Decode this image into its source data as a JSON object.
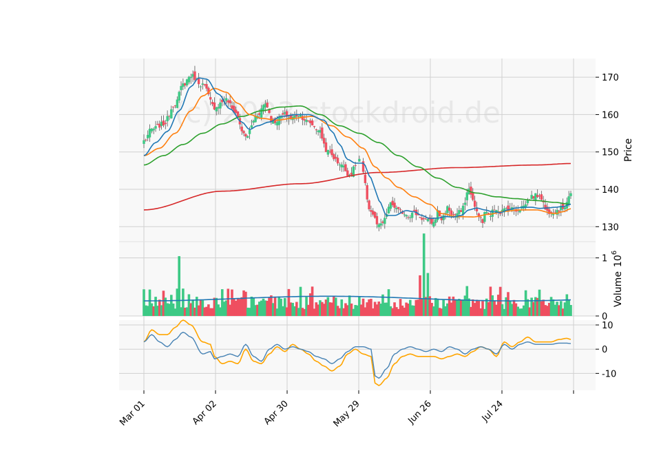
{
  "watermark": "(c) 2023 stockdroid.de",
  "chart_data": {
    "type": "candlestick",
    "x_tick_labels": [
      "Mar 01",
      "Apr 02",
      "Apr 30",
      "May 29",
      "Jun 26",
      "Jul 24"
    ],
    "x_tick_rotation_deg": 45,
    "grid": true,
    "colors": {
      "up": "#3dc985",
      "down": "#ef4f60",
      "ma_short": "#1f77b4",
      "ma_mid": "#ff7f0e",
      "ma_long": "#2ca02c",
      "ma_200": "#d62728",
      "volume_ma": "#1f77b4",
      "osc_fast": "#4682b4",
      "osc_slow": "#ffa500",
      "panel_bg": "#f8f8f8",
      "grid": "#d0d0d0"
    },
    "panels": [
      {
        "name": "price",
        "ylabel": "Price",
        "ylim": [
          126,
          175
        ],
        "yticks": [
          130,
          140,
          150,
          160,
          170
        ],
        "series": [
          {
            "kind": "close_anchors",
            "x": [
              0,
              4,
              10,
              16,
              20,
              24,
              30,
              36,
              42,
              46,
              52,
              58,
              62,
              66,
              72,
              75,
              79,
              84,
              89,
              94,
              100,
              105,
              110,
              116,
              120,
              122,
              126,
              131,
              136,
              138,
              140,
              143,
              145,
              148,
              150,
              152,
              155,
              158,
              162,
              166,
              170,
              173,
              174,
              176,
              180,
              182,
              186,
              190,
              194,
              196,
              198,
              202,
              206,
              211,
              214,
              218
            ],
            "y": [
              153,
              156,
              157.5,
              163,
              168,
              170.5,
              168,
              162,
              164,
              161,
              154,
              160,
              163,
              158,
              160,
              159,
              160,
              158,
              156,
              150,
              147,
              144,
              148,
              134,
              130,
              131,
              136,
              134,
              133,
              134,
              133,
              132,
              131.5,
              131,
              134,
              132,
              135,
              133,
              134,
              140,
              134,
              131,
              134,
              133,
              135,
              134,
              135,
              134.5,
              135.5,
              137,
              138,
              138.5,
              134,
              134.5,
              135,
              139
            ]
          },
          {
            "kind": "ma_short_anchors",
            "x": [
              0,
              6,
              12,
              18,
              24,
              28,
              32,
              38,
              44,
              50,
              54,
              58,
              64,
              70,
              78,
              84,
              92,
              96,
              100,
              104,
              108,
              112,
              116,
              118,
              120,
              124,
              128,
              134,
              138,
              142,
              146,
              150,
              154,
              158,
              162,
              166,
              170,
              174,
              178,
              182,
              186,
              190,
              194,
              198,
              202,
              206,
              210,
              214,
              218
            ],
            "y": [
              149,
              152.5,
              155.5,
              161,
              167.5,
              169.8,
              169.5,
              165.5,
              161.5,
              158,
              156,
              157,
              158,
              159.5,
              160,
              160,
              158.5,
              155.5,
              152,
              148,
              147,
              147,
              143,
              140,
              137,
              133,
              133,
              134.3,
              134,
              133,
              132.2,
              132.3,
              132.7,
              132.6,
              133,
              134.5,
              135,
              134.5,
              134,
              133.8,
              134.5,
              135,
              135.2,
              135.2,
              134.9,
              135,
              135.2,
              135.4,
              136
            ]
          },
          {
            "kind": "ma_mid_anchors",
            "x": [
              0,
              8,
              16,
              24,
              30,
              36,
              42,
              48,
              54,
              60,
              68,
              76,
              86,
              96,
              104,
              112,
              118,
              124,
              130,
              138,
              146,
              152,
              160,
              168,
              176,
              184,
              192,
              200,
              210,
              214,
              218
            ],
            "y": [
              149,
              151,
              155,
              161,
              165,
              167,
              166,
              163,
              160,
              159,
              158.5,
              159,
              159.5,
              157,
              154,
              151,
              146,
              143,
              140.5,
              138,
              136,
              133.5,
              132.7,
              132.6,
              133.3,
              134.1,
              134.5,
              134.5,
              133.5,
              134,
              134.8
            ]
          },
          {
            "kind": "ma_long_anchors",
            "x": [
              0,
              10,
              20,
              30,
              40,
              50,
              60,
              70,
              80,
              90,
              100,
              110,
              120,
              130,
              140,
              150,
              160,
              170,
              180,
              190,
              200,
              210,
              218
            ],
            "y": [
              146.5,
              149,
              152,
              155,
              157.5,
              159.5,
              161,
              162,
              162.3,
              160,
              157,
              155,
              152.5,
              149,
              146,
              143,
              140.5,
              139,
              138,
              137.5,
              137,
              136.5,
              136
            ]
          },
          {
            "kind": "ma_200_anchors",
            "x": [
              0,
              40,
              80,
              120,
              160,
              200,
              218
            ],
            "y": [
              134.5,
              139.5,
              141.5,
              144.5,
              145.8,
              146.5,
              146.9
            ]
          }
        ]
      },
      {
        "name": "volume",
        "ylabel": "Volume",
        "ylabel_exponent": "10^6",
        "ylim": [
          0,
          1.28
        ],
        "yticks": [
          0,
          1
        ],
        "spike_days": [
          {
            "x": 18,
            "v": 1.03
          },
          {
            "x": 143,
            "v": 1.42
          },
          {
            "x": 141,
            "v": 0.7
          },
          {
            "x": 145,
            "v": 0.74
          }
        ],
        "ma_level": 0.3
      },
      {
        "name": "oscillator",
        "ylim": [
          -17,
          12
        ],
        "yticks": [
          -10,
          0,
          10
        ],
        "series": [
          {
            "name": "",
            "kind": "fast_anchors",
            "x": [
              0,
              4,
              8,
              12,
              16,
              20,
              24,
              30,
              34,
              36,
              40,
              44,
              48,
              52,
              56,
              60,
              64,
              68,
              72,
              76,
              80,
              84,
              88,
              92,
              96,
              100,
              104,
              108,
              112,
              116,
              118,
              120,
              124,
              128,
              132,
              136,
              140,
              144,
              148,
              152,
              156,
              160,
              164,
              168,
              172,
              176,
              180,
              184,
              188,
              192,
              196,
              200,
              204,
              208,
              212,
              216,
              218
            ],
            "y": [
              3,
              6,
              3,
              1,
              4,
              7,
              5,
              -2,
              -1,
              -4,
              -3,
              -2,
              -3,
              2,
              -3,
              -5,
              0,
              2,
              0,
              1,
              0,
              -1,
              -3,
              -4,
              -6,
              -4,
              -1,
              1,
              1,
              0,
              -11,
              -12,
              -8,
              -2,
              0,
              1,
              0,
              -1,
              0,
              -1,
              1,
              0,
              -2,
              0,
              1,
              0,
              -2,
              2,
              0,
              2,
              3,
              2,
              2,
              2,
              2.5,
              2.5,
              2.3
            ]
          },
          {
            "name": "",
            "kind": "slow_anchors",
            "x": [
              0,
              4,
              8,
              12,
              16,
              20,
              24,
              30,
              34,
              36,
              40,
              44,
              48,
              52,
              56,
              60,
              64,
              68,
              72,
              76,
              80,
              84,
              88,
              92,
              96,
              100,
              104,
              108,
              112,
              116,
              118,
              120,
              124,
              128,
              132,
              136,
              140,
              144,
              148,
              152,
              156,
              160,
              164,
              168,
              172,
              176,
              180,
              184,
              188,
              192,
              196,
              200,
              204,
              208,
              212,
              216,
              218
            ],
            "y": [
              3,
              8,
              6,
              6,
              9,
              12,
              10,
              3,
              2,
              -3,
              -6,
              -5,
              -6,
              0,
              -5,
              -6,
              -2,
              1,
              -1,
              2,
              0,
              -2,
              -5,
              -7,
              -9,
              -7,
              -2,
              0,
              -2,
              -3,
              -14,
              -15,
              -12,
              -6,
              -3,
              -2,
              -3,
              -3,
              -3,
              -4,
              -3,
              -2,
              -3,
              -1,
              1,
              0,
              -3,
              3,
              1,
              3,
              5,
              3,
              3,
              3,
              4,
              4.5,
              4
            ]
          }
        ]
      }
    ]
  }
}
